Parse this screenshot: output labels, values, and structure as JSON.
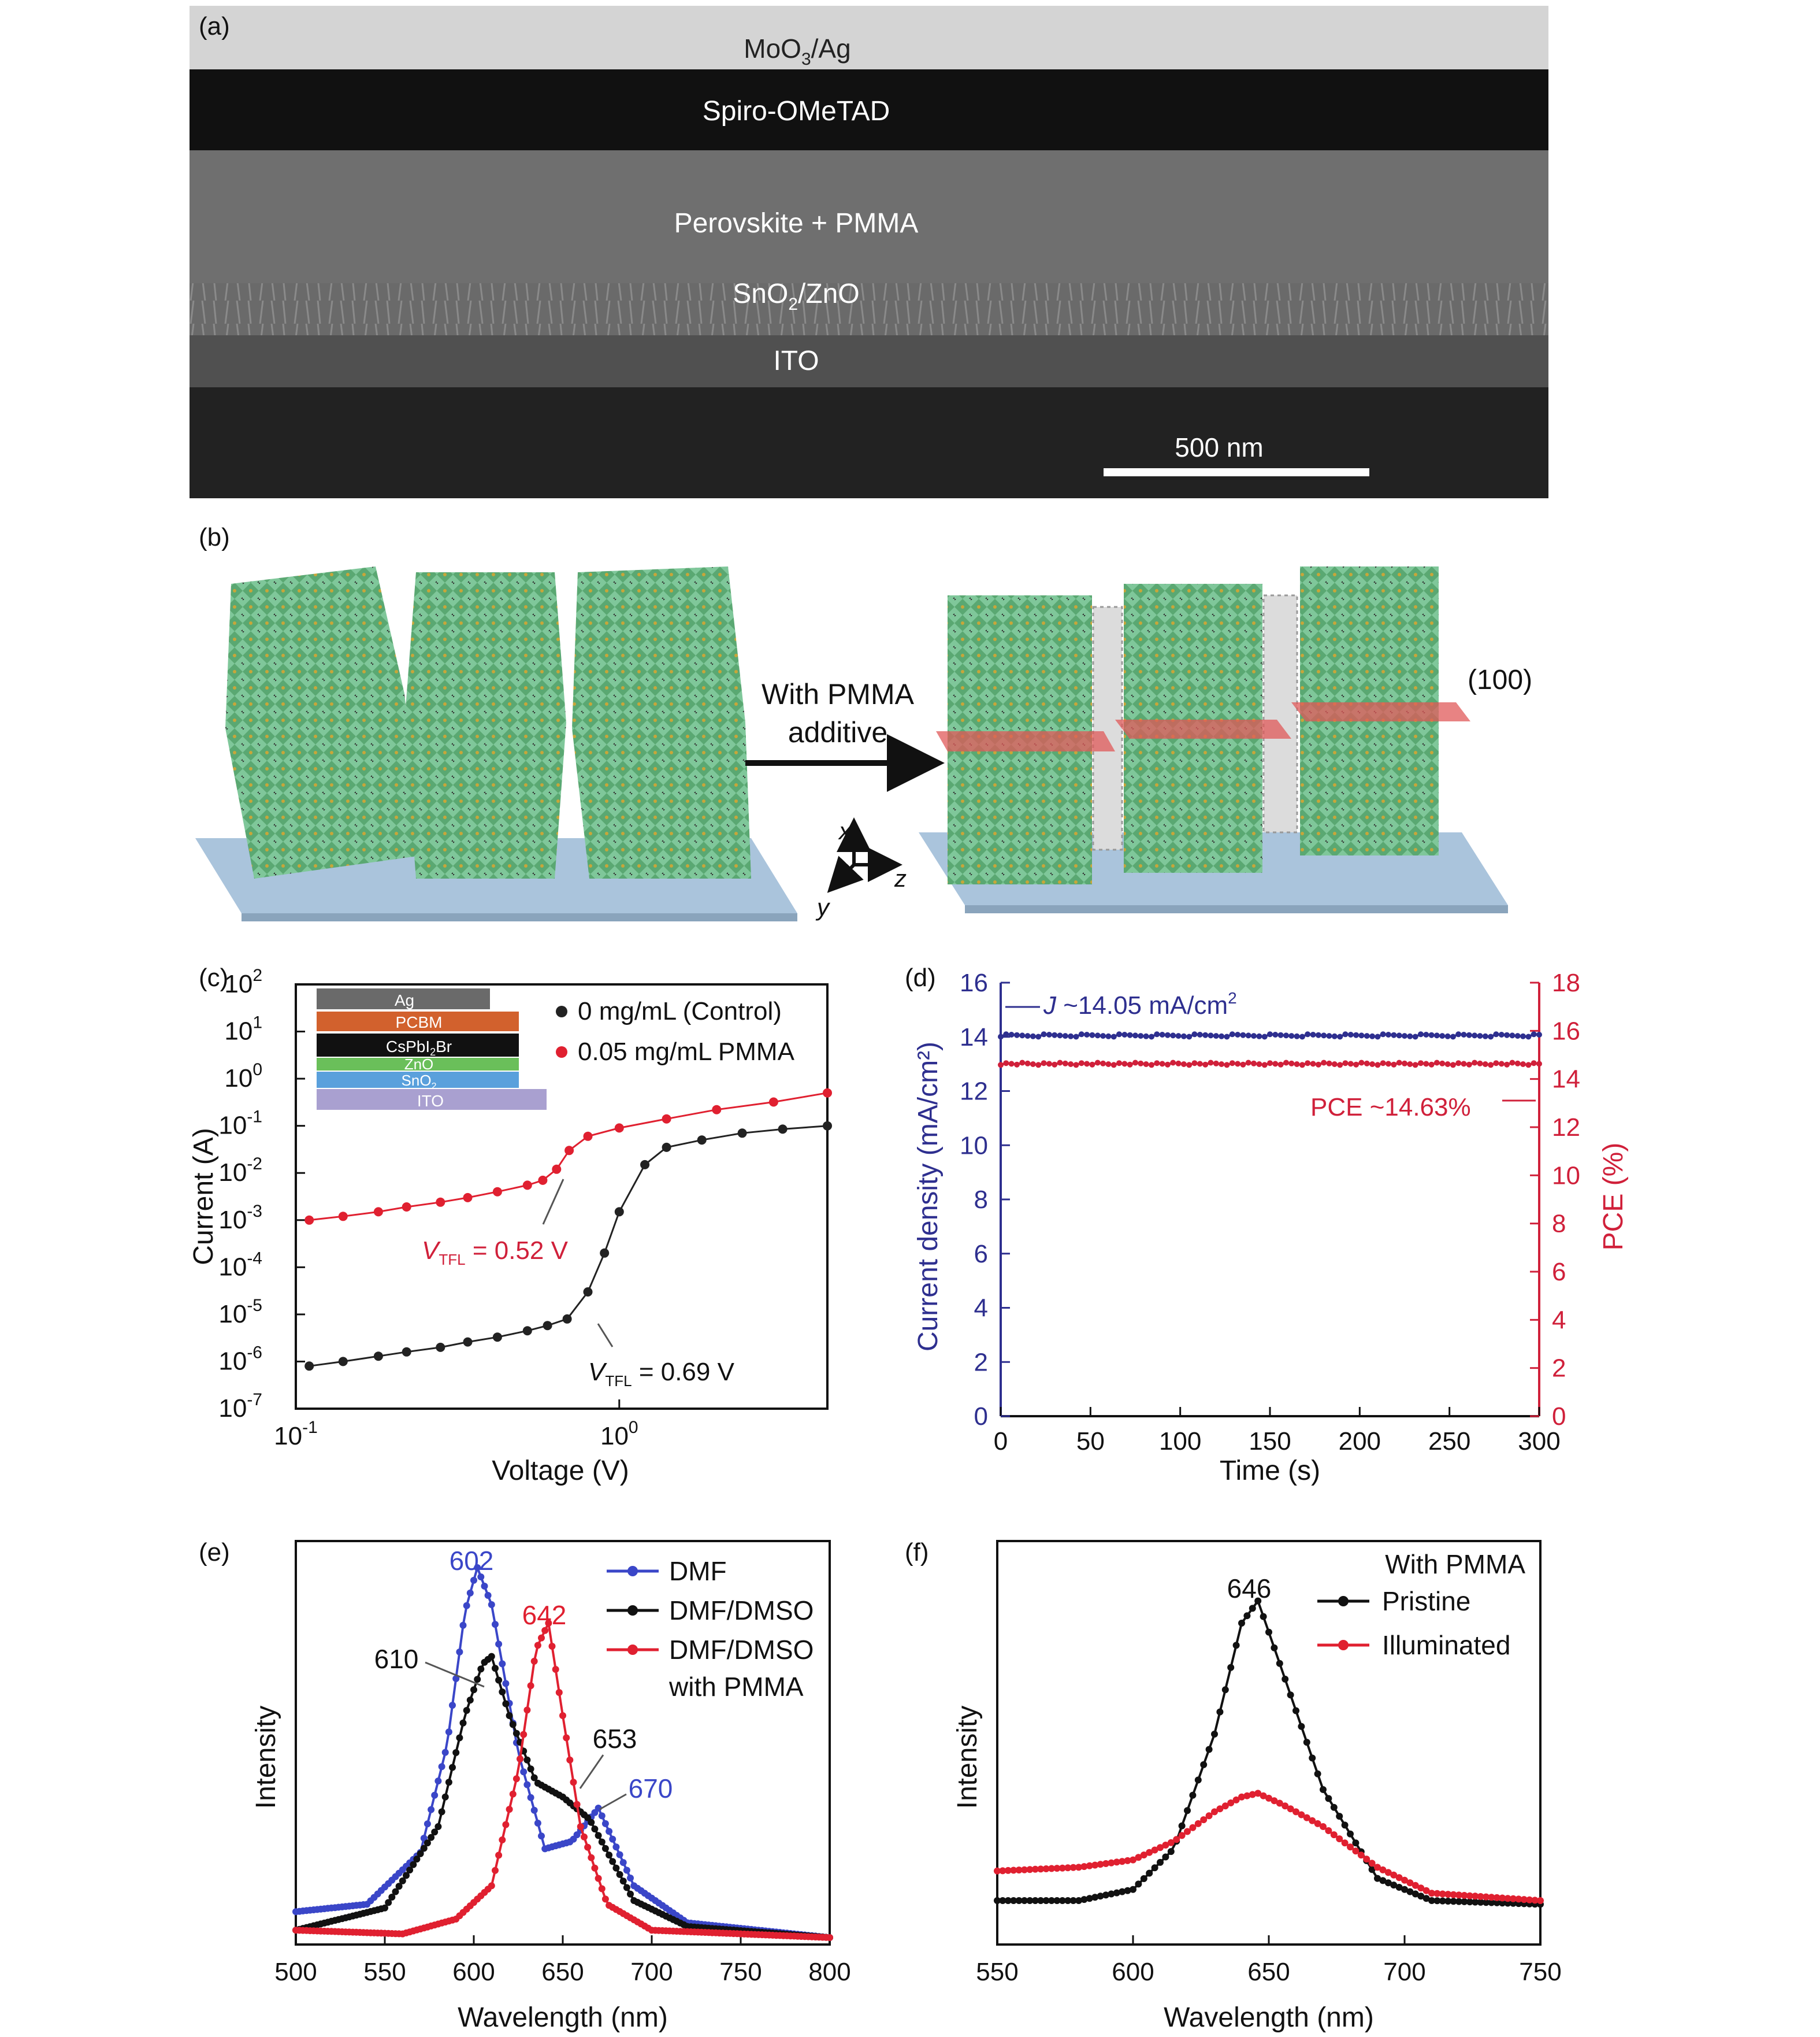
{
  "panels": {
    "a": "(a)",
    "b": "(b)",
    "c": "(c)",
    "d": "(d)",
    "e": "(e)",
    "f": "(f)"
  },
  "sem": {
    "layers": {
      "top_a": "MoO",
      "top_sub": "3",
      "top_b": "/Ag",
      "spiro": "Spiro-OMeTAD",
      "perov": "Perovskite + PMMA",
      "etl_a": "SnO",
      "etl_sub": "2",
      "etl_b": "/ZnO",
      "ito": "ITO"
    },
    "scalebar": "500 nm",
    "colors": {
      "metal": "#d0d0d0",
      "spiro": "#111111",
      "perov": "#6e6e6e",
      "etl": "#7a7a7a",
      "ito": "#4a4a4a",
      "substrate": "#242424"
    }
  },
  "schematic": {
    "arrow_label_1": "With PMMA",
    "arrow_label_2": "additive",
    "plane_label": "(100)",
    "axes": {
      "x": "x",
      "y": "y",
      "z": "z"
    },
    "colors": {
      "crystal": "#7fc79a",
      "substrate": "#aac4dc",
      "plane": "#e05a5a"
    }
  },
  "chart_c": {
    "ylabel": "Current (A)",
    "xlabel": "Voltage (V)",
    "y_ticks": [
      {
        "base": "10",
        "exp": "2"
      },
      {
        "base": "10",
        "exp": "1"
      },
      {
        "base": "10",
        "exp": "0"
      },
      {
        "base": "10",
        "exp": "-1"
      },
      {
        "base": "10",
        "exp": "-2"
      },
      {
        "base": "10",
        "exp": "-3"
      },
      {
        "base": "10",
        "exp": "-4"
      },
      {
        "base": "10",
        "exp": "-5"
      },
      {
        "base": "10",
        "exp": "-6"
      },
      {
        "base": "10",
        "exp": "-7"
      }
    ],
    "x_ticks": [
      {
        "base": "10",
        "exp": "-1"
      },
      {
        "base": "10",
        "exp": "0"
      }
    ],
    "legend": [
      "0 mg/mL (Control)",
      "0.05 mg/mL PMMA"
    ],
    "ann_red_v": "V",
    "ann_red_sub": "TFL",
    "ann_red_val": " = 0.52 V",
    "ann_blk_v": "V",
    "ann_blk_sub": "TFL",
    "ann_blk_val": " = 0.69 V",
    "inset": [
      {
        "label": "Ag",
        "color": "#6a6a6a"
      },
      {
        "label": "PCBM",
        "color": "#d2612d"
      },
      {
        "label": "CsPbI",
        "sub": "2",
        "tail": "Br",
        "color": "#111111"
      },
      {
        "label": "ZnO",
        "color": "#6abf5a"
      },
      {
        "label": "SnO",
        "sub": "2",
        "color": "#5aa0dc"
      },
      {
        "label": "ITO",
        "color": "#a9a0d0"
      }
    ],
    "colors": {
      "control": "#222222",
      "pmma": "#e02030"
    }
  },
  "chart_d": {
    "ylabel_left": "Current density (mA/cm²)",
    "ylabel_right": "PCE (%)",
    "xlabel": "Time (s)",
    "x_ticks": [
      "0",
      "50",
      "100",
      "150",
      "200",
      "250",
      "300"
    ],
    "y_left_ticks": [
      "0",
      "2",
      "4",
      "6",
      "8",
      "10",
      "12",
      "14",
      "16"
    ],
    "y_right_ticks": [
      "0",
      "2",
      "4",
      "6",
      "8",
      "10",
      "12",
      "14",
      "16",
      "18"
    ],
    "ann_j_a": "J",
    "ann_j_b": " ~14.05 mA/cm",
    "ann_j_sup": "2",
    "ann_pce": "PCE ~14.63%",
    "colors": {
      "j": "#2e2f8f",
      "pce": "#d0203a"
    }
  },
  "chart_e": {
    "ylabel": "Intensity",
    "xlabel": "Wavelength (nm)",
    "x_ticks": [
      "500",
      "550",
      "600",
      "650",
      "700",
      "750",
      "800"
    ],
    "legend": [
      "DMF",
      "DMF/DMSO",
      "DMF/DMSO",
      "with PMMA"
    ],
    "peaks": [
      "602",
      "610",
      "642",
      "653",
      "670"
    ],
    "colors": {
      "dmf": "#3a46c8",
      "dmso": "#111111",
      "pmma": "#e02030"
    }
  },
  "chart_f": {
    "ylabel": "Intensity",
    "xlabel": "Wavelength (nm)",
    "x_ticks": [
      "550",
      "600",
      "650",
      "700",
      "750"
    ],
    "legend_title": "With PMMA",
    "legend": [
      "Pristine",
      "Illuminated"
    ],
    "peak": "646",
    "colors": {
      "pristine": "#111111",
      "illum": "#e02030"
    }
  },
  "chart_data": [
    {
      "type": "scatter",
      "title": "(c)",
      "xlabel": "Voltage (V)",
      "ylabel": "Current (A)",
      "x_scale": "log",
      "y_scale": "log",
      "xlim": [
        0.1,
        4.4
      ],
      "ylim": [
        1e-07,
        100
      ],
      "series": [
        {
          "name": "0 mg/mL (Control)",
          "x": [
            0.11,
            0.14,
            0.18,
            0.22,
            0.28,
            0.34,
            0.42,
            0.52,
            0.6,
            0.69,
            0.8,
            0.9,
            1.0,
            1.2,
            1.4,
            1.8,
            2.4,
            3.2,
            4.4
          ],
          "y": [
            8e-07,
            1e-06,
            1.3e-06,
            1.6e-06,
            2e-06,
            2.6e-06,
            3.3e-06,
            4.5e-06,
            5.8e-06,
            8e-06,
            3e-05,
            0.0002,
            0.0015,
            0.015,
            0.035,
            0.05,
            0.07,
            0.085,
            0.1
          ]
        },
        {
          "name": "0.05 mg/mL PMMA",
          "x": [
            0.11,
            0.14,
            0.18,
            0.22,
            0.28,
            0.34,
            0.42,
            0.52,
            0.58,
            0.64,
            0.7,
            0.8,
            1.0,
            1.4,
            2.0,
            3.0,
            4.4
          ],
          "y": [
            0.001,
            0.0012,
            0.0015,
            0.0019,
            0.0024,
            0.003,
            0.004,
            0.0055,
            0.007,
            0.012,
            0.03,
            0.06,
            0.09,
            0.14,
            0.22,
            0.32,
            0.5
          ]
        }
      ],
      "annotations": [
        "V_TFL = 0.52 V",
        "V_TFL = 0.69 V"
      ]
    },
    {
      "type": "line",
      "title": "(d)",
      "xlabel": "Time (s)",
      "ylabel": "Current density (mA/cm²)",
      "ylabel_right": "PCE (%)",
      "xlim": [
        0,
        300
      ],
      "ylim_left": [
        0,
        16
      ],
      "ylim_right": [
        0,
        18
      ],
      "series": [
        {
          "name": "J ~14.05 mA/cm2",
          "axis": "left",
          "x": [
            0,
            50,
            100,
            150,
            200,
            250,
            300
          ],
          "y": [
            14.05,
            14.05,
            14.05,
            14.05,
            14.05,
            14.05,
            14.05
          ]
        },
        {
          "name": "PCE ~14.63%",
          "axis": "right",
          "x": [
            0,
            50,
            100,
            150,
            200,
            250,
            300
          ],
          "y": [
            14.63,
            14.63,
            14.63,
            14.63,
            14.63,
            14.63,
            14.63
          ]
        }
      ]
    },
    {
      "type": "line",
      "title": "(e)",
      "xlabel": "Wavelength (nm)",
      "ylabel": "Intensity",
      "xlim": [
        500,
        800
      ],
      "series": [
        {
          "name": "DMF",
          "peaks": [
            602,
            670
          ],
          "x": [
            500,
            540,
            570,
            585,
            595,
            602,
            610,
            625,
            640,
            655,
            670,
            690,
            720,
            800
          ],
          "y": [
            0.07,
            0.09,
            0.23,
            0.52,
            0.88,
            1.0,
            0.9,
            0.5,
            0.24,
            0.26,
            0.35,
            0.14,
            0.04,
            0.0
          ]
        },
        {
          "name": "DMF/DMSO",
          "peaks": [
            610,
            653
          ],
          "x": [
            500,
            550,
            580,
            595,
            605,
            610,
            620,
            635,
            650,
            665,
            690,
            720,
            800
          ],
          "y": [
            0.02,
            0.08,
            0.3,
            0.6,
            0.74,
            0.76,
            0.6,
            0.42,
            0.38,
            0.32,
            0.1,
            0.03,
            0.0
          ]
        },
        {
          "name": "DMF/DMSO with PMMA",
          "peaks": [
            642
          ],
          "x": [
            500,
            560,
            590,
            610,
            625,
            635,
            642,
            650,
            660,
            675,
            700,
            800
          ],
          "y": [
            0.02,
            0.01,
            0.05,
            0.14,
            0.45,
            0.78,
            0.85,
            0.6,
            0.3,
            0.09,
            0.02,
            0.0
          ]
        }
      ]
    },
    {
      "type": "line",
      "title": "(f)",
      "xlabel": "Wavelength (nm)",
      "ylabel": "Intensity",
      "xlim": [
        550,
        750
      ],
      "series": [
        {
          "name": "Pristine",
          "peaks": [
            646
          ],
          "x": [
            550,
            580,
            600,
            615,
            630,
            640,
            646,
            655,
            670,
            690,
            710,
            750
          ],
          "y": [
            0.1,
            0.1,
            0.13,
            0.24,
            0.55,
            0.85,
            0.91,
            0.72,
            0.4,
            0.16,
            0.1,
            0.09
          ]
        },
        {
          "name": "Illuminated",
          "peaks": [
            646
          ],
          "x": [
            550,
            580,
            600,
            615,
            630,
            640,
            646,
            655,
            670,
            690,
            710,
            750
          ],
          "y": [
            0.18,
            0.19,
            0.21,
            0.26,
            0.34,
            0.38,
            0.39,
            0.36,
            0.3,
            0.19,
            0.12,
            0.1
          ]
        }
      ]
    }
  ]
}
